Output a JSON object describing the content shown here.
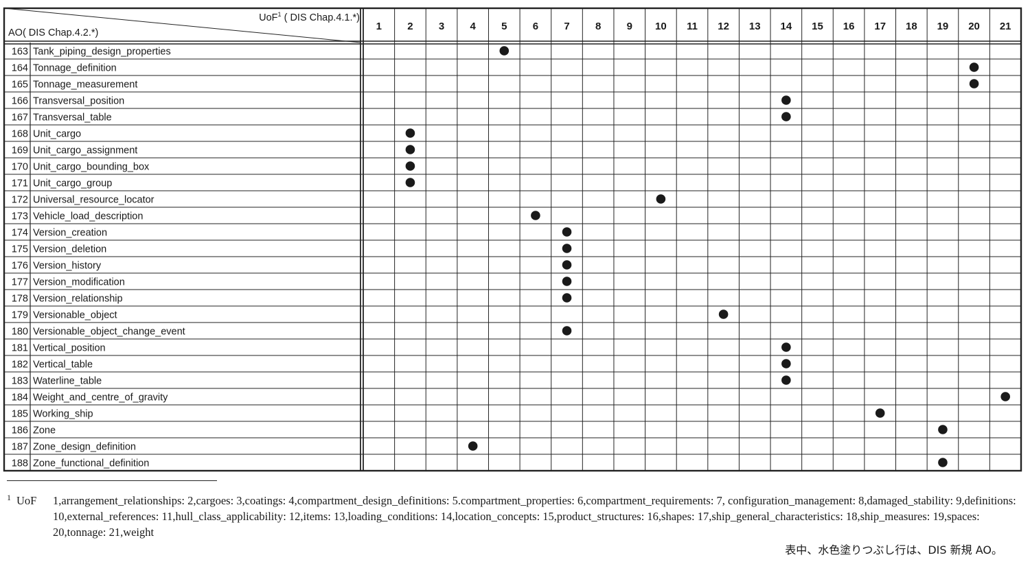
{
  "header": {
    "uof_label": "UoF",
    "uof_superscript": "1",
    "uof_ref": "( DIS Chap.4.1.*)",
    "ao_label": "AO( DIS Chap.4.2.*)"
  },
  "columns": [
    "1",
    "2",
    "3",
    "4",
    "5",
    "6",
    "7",
    "8",
    "9",
    "10",
    "11",
    "12",
    "13",
    "14",
    "15",
    "16",
    "17",
    "18",
    "19",
    "20",
    "21"
  ],
  "rows": [
    {
      "num": "163",
      "name": "Tank_piping_design_properties",
      "mark": 5
    },
    {
      "num": "164",
      "name": "Tonnage_definition",
      "mark": 20
    },
    {
      "num": "165",
      "name": "Tonnage_measurement",
      "mark": 20
    },
    {
      "num": "166",
      "name": "Transversal_position",
      "mark": 14
    },
    {
      "num": "167",
      "name": "Transversal_table",
      "mark": 14
    },
    {
      "num": "168",
      "name": "Unit_cargo",
      "mark": 2
    },
    {
      "num": "169",
      "name": "Unit_cargo_assignment",
      "mark": 2
    },
    {
      "num": "170",
      "name": "Unit_cargo_bounding_box",
      "mark": 2
    },
    {
      "num": "171",
      "name": "Unit_cargo_group",
      "mark": 2
    },
    {
      "num": "172",
      "name": "Universal_resource_locator",
      "mark": 10
    },
    {
      "num": "173",
      "name": "Vehicle_load_description",
      "mark": 6
    },
    {
      "num": "174",
      "name": "Version_creation",
      "mark": 7
    },
    {
      "num": "175",
      "name": "Version_deletion",
      "mark": 7
    },
    {
      "num": "176",
      "name": "Version_history",
      "mark": 7
    },
    {
      "num": "177",
      "name": "Version_modification",
      "mark": 7
    },
    {
      "num": "178",
      "name": "Version_relationship",
      "mark": 7
    },
    {
      "num": "179",
      "name": "Versionable_object",
      "mark": 12
    },
    {
      "num": "180",
      "name": "Versionable_object_change_event",
      "mark": 7
    },
    {
      "num": "181",
      "name": "Vertical_position",
      "mark": 14
    },
    {
      "num": "182",
      "name": "Vertical_table",
      "mark": 14
    },
    {
      "num": "183",
      "name": "Waterline_table",
      "mark": 14
    },
    {
      "num": "184",
      "name": "Weight_and_centre_of_gravity",
      "mark": 21
    },
    {
      "num": "185",
      "name": "Working_ship",
      "mark": 17
    },
    {
      "num": "186",
      "name": "Zone",
      "mark": 19
    },
    {
      "num": "187",
      "name": "Zone_design_definition",
      "mark": 4
    },
    {
      "num": "188",
      "name": "Zone_functional_definition",
      "mark": 19
    }
  ],
  "footnote": {
    "marker": "1",
    "label": "UoF",
    "text": "1,arrangement_relationships: 2,cargoes: 3,coatings: 4,compartment_design_definitions: 5.compartment_properties: 6,compartment_requirements: 7, configuration_management: 8,damaged_stability: 9,definitions: 10,external_references: 11,hull_class_applicability: 12,items: 13,loading_conditions: 14,location_concepts: 15,product_structures: 16,shapes: 17,ship_general_characteristics: 18,ship_measures: 19,spaces: 20,tonnage: 21,weight"
  },
  "note": "表中、水色塗りつぶし行は、DIS 新規 AO。",
  "colors": {
    "line": "#222222",
    "dot": "#1a1a1a"
  }
}
